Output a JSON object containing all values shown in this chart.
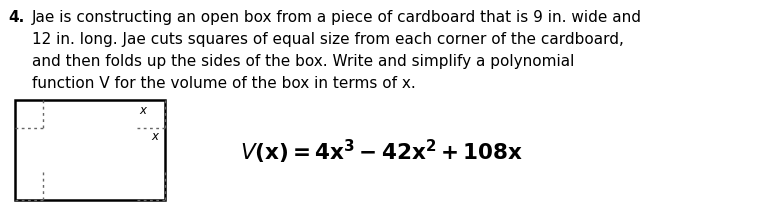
{
  "number_label": "4.",
  "paragraph_line1": "Jae is constructing an open box from a piece of cardboard that is 9 in. wide and",
  "paragraph_line2": "12 in. long. Jae cuts squares of equal size from each corner of the cardboard,",
  "paragraph_line3": "and then folds up the sides of the box. Write and simplify a polynomial",
  "paragraph_line4": "function V for the volume of the box in terms of x.",
  "text_color": "#000000",
  "bg_color": "#ffffff",
  "box_color": "#000000",
  "dashed_color": "#666666",
  "font_size_para": 11.0,
  "font_size_formula": 15.5,
  "font_size_x_label": 8.5,
  "formula_math": "$\\mathit{V}(x) = 4x^3 - 42x^2 + 108x$"
}
